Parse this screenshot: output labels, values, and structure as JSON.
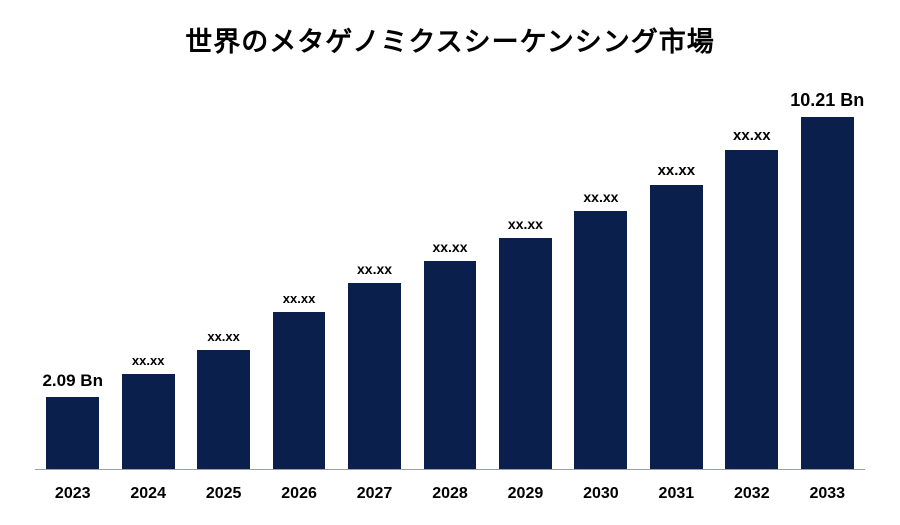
{
  "chart": {
    "type": "bar",
    "title": "世界のメタゲノミクスシーケンシング市場",
    "title_fontsize": 27,
    "title_color": "#000000",
    "background_color": "#ffffff",
    "axis_line_color": "#9aa0a6",
    "bar_color": "#0b1f4d",
    "bar_width_pct": 70,
    "ylim": [
      0,
      11
    ],
    "categories": [
      "2023",
      "2024",
      "2025",
      "2026",
      "2027",
      "2028",
      "2029",
      "2030",
      "2031",
      "2032",
      "2033"
    ],
    "values": [
      2.09,
      2.75,
      3.45,
      4.55,
      5.4,
      6.05,
      6.7,
      7.5,
      8.25,
      9.25,
      10.21
    ],
    "value_labels": [
      "2.09 Bn",
      "xx.xx",
      "xx.xx",
      "xx.xx",
      "xx.xx",
      "xx.xx",
      "xx.xx",
      "xx.xx",
      "xx.xx",
      "xx.xx",
      "10.21 Bn"
    ],
    "value_label_fontsizes": [
      17,
      13,
      13,
      13,
      14,
      14,
      14,
      14,
      15,
      15,
      18
    ],
    "x_label_fontsize": 16,
    "x_label_color": "#000000"
  }
}
